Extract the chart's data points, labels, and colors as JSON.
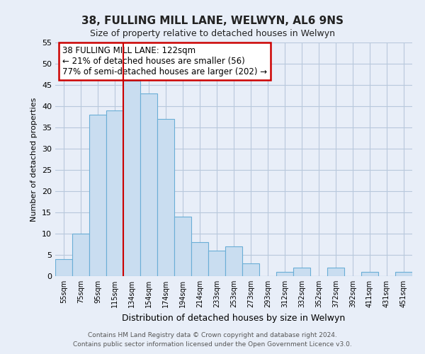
{
  "title": "38, FULLING MILL LANE, WELWYN, AL6 9NS",
  "subtitle": "Size of property relative to detached houses in Welwyn",
  "xlabel": "Distribution of detached houses by size in Welwyn",
  "ylabel": "Number of detached properties",
  "categories": [
    "55sqm",
    "75sqm",
    "95sqm",
    "115sqm",
    "134sqm",
    "154sqm",
    "174sqm",
    "194sqm",
    "214sqm",
    "233sqm",
    "253sqm",
    "273sqm",
    "293sqm",
    "312sqm",
    "332sqm",
    "352sqm",
    "372sqm",
    "392sqm",
    "411sqm",
    "431sqm",
    "451sqm"
  ],
  "values": [
    4,
    10,
    38,
    39,
    46,
    43,
    37,
    14,
    8,
    6,
    7,
    3,
    0,
    1,
    2,
    0,
    2,
    0,
    1,
    0,
    1
  ],
  "bar_color": "#c9ddf0",
  "bar_edge_color": "#6aaed6",
  "vline_color": "#cc0000",
  "ylim": [
    0,
    55
  ],
  "yticks": [
    0,
    5,
    10,
    15,
    20,
    25,
    30,
    35,
    40,
    45,
    50,
    55
  ],
  "annotation_line1": "38 FULLING MILL LANE: 122sqm",
  "annotation_line2": "← 21% of detached houses are smaller (56)",
  "annotation_line3": "77% of semi-detached houses are larger (202) →",
  "annotation_box_edge": "#cc0000",
  "footer_line1": "Contains HM Land Registry data © Crown copyright and database right 2024.",
  "footer_line2": "Contains public sector information licensed under the Open Government Licence v3.0.",
  "bg_color": "#e8eef8",
  "plot_bg_color": "#e8eef8",
  "grid_color": "#b8c8dc"
}
